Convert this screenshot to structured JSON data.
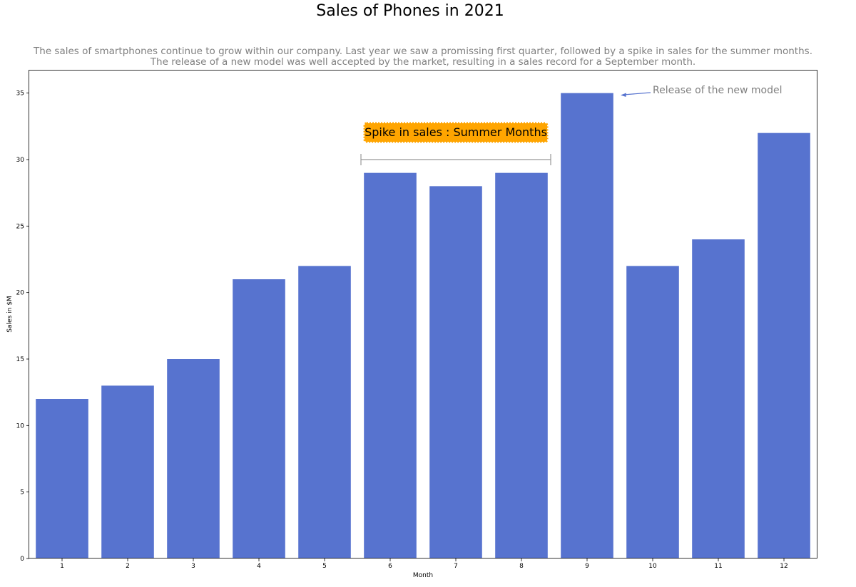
{
  "chart_data": {
    "type": "bar",
    "title": "Sales of Phones in 2021",
    "subtitle_lines": [
      "The sales of smartphones continue to grow within our company. Last year we saw a promissing first quarter, followed by a spike in sales for the summer months.",
      "The release of a new model was well accepted by the market, resulting in a sales record for a September month."
    ],
    "xlabel": "Month",
    "ylabel": "Sales in $M",
    "categories": [
      "1",
      "2",
      "3",
      "4",
      "5",
      "6",
      "7",
      "8",
      "9",
      "10",
      "11",
      "12"
    ],
    "values": [
      12,
      13,
      15,
      21,
      22,
      29,
      28,
      29,
      35,
      22,
      24,
      32
    ],
    "ylim": [
      0,
      36.75
    ],
    "yticks": [
      0,
      5,
      10,
      15,
      20,
      25,
      30,
      35
    ],
    "grid": false,
    "bar_color": "#5773cf",
    "annotations": {
      "spike_label": "Spike in sales : Summer Months",
      "spike_label_bg": "#ffa500",
      "spike_bracket_from_category": "6",
      "spike_bracket_to_category": "8",
      "spike_bracket_value": 30,
      "release_label": "Release of the new model",
      "release_target_category": "9",
      "release_target_value": 35
    }
  }
}
